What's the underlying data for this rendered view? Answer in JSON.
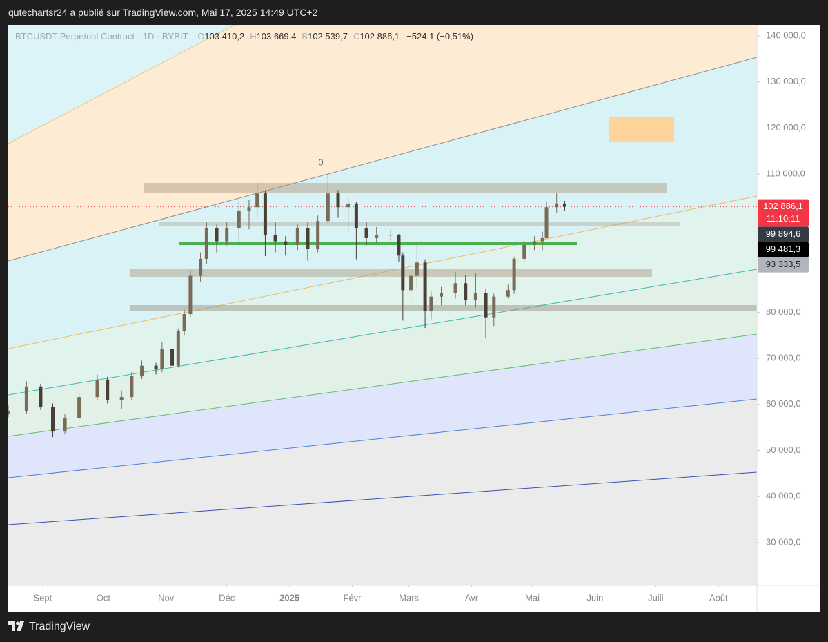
{
  "header": {
    "text": "qutechartsr24 a publié sur TradingView.com, Mai 17, 2025 14:49 UTC+2"
  },
  "footer": {
    "brand": "TradingView"
  },
  "chart_data": {
    "type": "candlestick",
    "symbol": "BTCUSDT Perpetual Contract · 1D · BYBIT",
    "ohlc_legend": [
      {
        "key": "O",
        "value": "103 410,2"
      },
      {
        "key": "H",
        "value": "103 669,4"
      },
      {
        "key": "B",
        "value": "102 539,7"
      },
      {
        "key": "C",
        "value": "102 886,1"
      }
    ],
    "change": "−524,1 (−0,51%)",
    "annotation": "0",
    "up_color": "#7a6a58",
    "down_color": "#4a3f35",
    "grid": false,
    "x": [
      -17,
      -8,
      -1,
      5,
      11,
      18,
      27,
      32,
      39,
      44,
      49,
      56,
      59,
      64,
      67,
      70,
      73,
      78,
      81,
      86,
      91,
      97,
      102,
      106,
      110,
      115,
      120,
      126,
      131,
      136,
      141,
      146,
      151,
      155,
      160,
      165,
      172,
      176,
      178,
      182,
      185,
      189,
      192,
      197,
      204,
      209,
      214,
      219,
      223,
      230,
      233,
      238,
      243,
      247,
      249,
      254,
      258
    ],
    "open": [
      58000,
      58600,
      63900,
      59400,
      54100,
      57100,
      61600,
      65400,
      60900,
      61600,
      66100,
      68400,
      67600,
      72100,
      68400,
      75900,
      79600,
      87900,
      91600,
      98300,
      95400,
      98300,
      102100,
      102800,
      105800,
      96800,
      95400,
      94600,
      98300,
      93800,
      99800,
      105800,
      102800,
      103600,
      98300,
      96100,
      96800,
      96800,
      92300,
      84800,
      87900,
      90800,
      80300,
      83400,
      84100,
      86300,
      82600,
      84100,
      78900,
      83400,
      84800,
      91600,
      94600,
      95400,
      96100,
      102800,
      103600
    ],
    "high": [
      59800,
      65000,
      64500,
      60200,
      58000,
      62500,
      66500,
      66000,
      63000,
      67000,
      69500,
      69000,
      73500,
      72800,
      76500,
      80500,
      89000,
      93000,
      99500,
      99000,
      99500,
      104000,
      104500,
      108100,
      106500,
      99500,
      96500,
      99000,
      99500,
      101000,
      109700,
      106500,
      105000,
      104000,
      99500,
      98500,
      98000,
      97000,
      93000,
      89000,
      95000,
      91500,
      84500,
      85500,
      88800,
      88000,
      88500,
      85000,
      84000,
      86000,
      92000,
      95500,
      96500,
      97500,
      104000,
      105800,
      104200
    ],
    "low": [
      57200,
      58000,
      58800,
      52900,
      53500,
      56500,
      61000,
      60200,
      59000,
      61000,
      65500,
      66500,
      67000,
      67000,
      68000,
      75000,
      79000,
      86500,
      90500,
      93000,
      94500,
      94500,
      98000,
      100500,
      92200,
      93000,
      92300,
      93500,
      91200,
      93000,
      99000,
      100500,
      97500,
      91500,
      94500,
      95000,
      95500,
      91000,
      78200,
      82000,
      85000,
      76600,
      78500,
      81500,
      83000,
      81500,
      81000,
      74400,
      77000,
      83000,
      84000,
      91000,
      93500,
      93500,
      96000,
      101500,
      102000
    ],
    "close": [
      58600,
      63900,
      59400,
      54100,
      57100,
      61600,
      65400,
      60900,
      61600,
      66100,
      68400,
      67600,
      72100,
      68400,
      75900,
      79600,
      87900,
      91600,
      98300,
      95400,
      98300,
      102100,
      102800,
      105800,
      96800,
      95400,
      94600,
      98300,
      93800,
      99800,
      105800,
      102800,
      103600,
      98300,
      96100,
      96800,
      96800,
      92300,
      84800,
      87900,
      90800,
      80300,
      83400,
      84100,
      86300,
      82600,
      84100,
      78900,
      83400,
      84800,
      91600,
      94600,
      95400,
      96100,
      102800,
      103600,
      102900
    ],
    "xlim": [
      -17,
      353
    ],
    "xticks": [
      {
        "value": 0,
        "label": "Sept"
      },
      {
        "value": 30,
        "label": "Oct"
      },
      {
        "value": 61,
        "label": "Nov"
      },
      {
        "value": 91,
        "label": "Déc"
      },
      {
        "value": 122,
        "label": "2025"
      },
      {
        "value": 153,
        "label": "Févr"
      },
      {
        "value": 181,
        "label": "Mars"
      },
      {
        "value": 212,
        "label": "Avr"
      },
      {
        "value": 242,
        "label": "Mai"
      },
      {
        "value": 273,
        "label": "Juin"
      },
      {
        "value": 303,
        "label": "Juill"
      },
      {
        "value": 334,
        "label": "Août"
      }
    ],
    "ylim": [
      20700,
      142400
    ],
    "yticks": [
      {
        "value": 140000,
        "label": "140 000,0"
      },
      {
        "value": 130000,
        "label": "130 000,0"
      },
      {
        "value": 120000,
        "label": "120 000,0"
      },
      {
        "value": 110000,
        "label": "110 000,0"
      },
      {
        "value": 80000,
        "label": "80 000,0"
      },
      {
        "value": 70000,
        "label": "70 000,0"
      },
      {
        "value": 60000,
        "label": "60 000,0"
      },
      {
        "value": 50000,
        "label": "50 000,0"
      },
      {
        "value": 40000,
        "label": "40 000,0"
      },
      {
        "value": 30000,
        "label": "30 000,0"
      }
    ],
    "countdown": "11:10:11",
    "price_labels": [
      {
        "value": 102886.1,
        "label": "102 886,1",
        "color": "#f23645"
      },
      {
        "value": 99894.6,
        "label": "99 894,6",
        "color": "#363a45"
      },
      {
        "value": 99481.3,
        "label": "99 481,3",
        "color": "#000000"
      },
      {
        "value": 93333.5,
        "label": "93 333,5",
        "color": "#b2b5be"
      }
    ]
  }
}
